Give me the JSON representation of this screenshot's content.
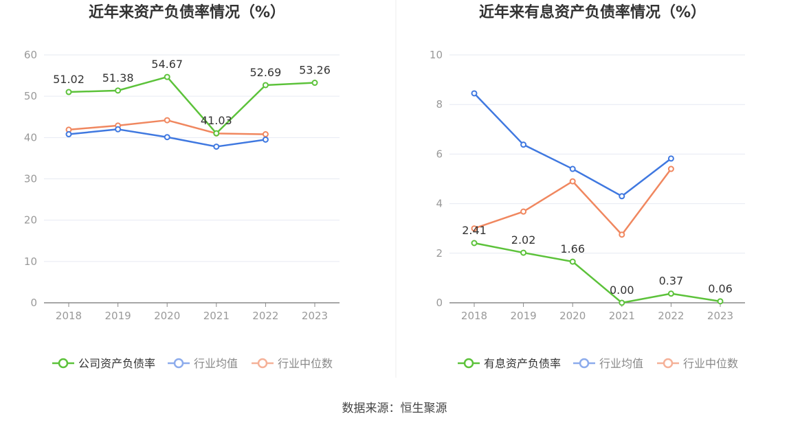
{
  "source_text": "数据来源：恒生聚源",
  "chart_data": [
    {
      "type": "line",
      "title": "近年来资产负债率情况（%）",
      "categories": [
        "2018",
        "2019",
        "2020",
        "2021",
        "2022",
        "2023"
      ],
      "ylim": [
        0,
        60
      ],
      "yticks": [
        0,
        10,
        20,
        30,
        40,
        50,
        60
      ],
      "grid": true,
      "legend_position": "bottom",
      "series": [
        {
          "name": "公司资产负债率",
          "color": "#5cc23a",
          "values": [
            51.02,
            51.38,
            54.67,
            41.03,
            52.69,
            53.26
          ],
          "labels": [
            "51.02",
            "51.38",
            "54.67",
            "41.03",
            "52.69",
            "53.26"
          ]
        },
        {
          "name": "行业均值",
          "color": "#3f78e0",
          "values": [
            40.8,
            42.0,
            40.1,
            37.8,
            39.5,
            null
          ],
          "labels": []
        },
        {
          "name": "行业中位数",
          "color": "#f0875f",
          "values": [
            41.9,
            42.9,
            44.2,
            41.0,
            40.8,
            null
          ],
          "labels": []
        }
      ]
    },
    {
      "type": "line",
      "title": "近年来有息资产负债率情况（%）",
      "categories": [
        "2018",
        "2019",
        "2020",
        "2021",
        "2022",
        "2023"
      ],
      "ylim": [
        0,
        10
      ],
      "yticks": [
        0,
        2,
        4,
        6,
        8,
        10
      ],
      "grid": true,
      "legend_position": "bottom",
      "series": [
        {
          "name": "有息资产负债率",
          "color": "#5cc23a",
          "values": [
            2.41,
            2.02,
            1.66,
            0.0,
            0.37,
            0.06
          ],
          "labels": [
            "2.41",
            "2.02",
            "1.66",
            "0.00",
            "0.37",
            "0.06"
          ]
        },
        {
          "name": "行业均值",
          "color": "#3f78e0",
          "values": [
            8.45,
            6.38,
            5.4,
            4.3,
            5.82,
            null
          ],
          "labels": []
        },
        {
          "name": "行业中位数",
          "color": "#f0875f",
          "values": [
            3.0,
            3.68,
            4.9,
            2.75,
            5.4,
            null
          ],
          "labels": []
        }
      ]
    }
  ]
}
